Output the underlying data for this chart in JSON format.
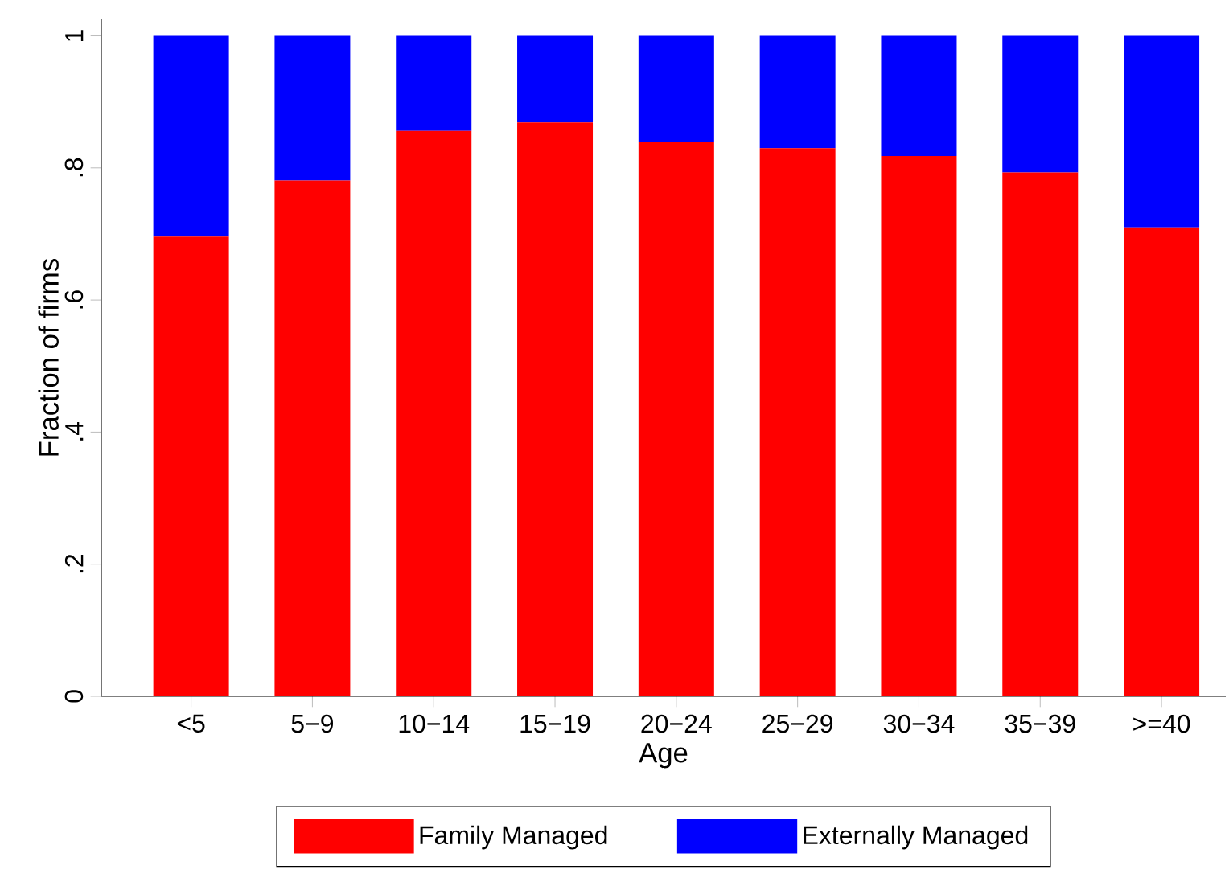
{
  "chart_data": {
    "type": "bar",
    "stacked": true,
    "xlabel": "Age",
    "ylabel": "Fraction of firms",
    "categories": [
      "<5",
      "5−9",
      "10−14",
      "15−19",
      "20−24",
      "25−29",
      "30−34",
      "35−39",
      ">=40"
    ],
    "series": [
      {
        "name": "Family Managed",
        "color": "#ff0000",
        "values": [
          0.696,
          0.781,
          0.856,
          0.869,
          0.839,
          0.83,
          0.818,
          0.793,
          0.71
        ]
      },
      {
        "name": "Externally Managed",
        "color": "#0000ff",
        "values": [
          0.304,
          0.219,
          0.144,
          0.131,
          0.161,
          0.17,
          0.182,
          0.207,
          0.29
        ]
      }
    ],
    "ylim": [
      0,
      1.025
    ],
    "yticks": [
      0,
      {
        "value": 0.2,
        "label": ".2"
      },
      {
        "value": 0.4,
        "label": ".4"
      },
      {
        "value": 0.6,
        "label": ".6"
      },
      {
        "value": 0.8,
        "label": ".8"
      },
      1
    ],
    "legend": "bottom",
    "grid": false
  }
}
